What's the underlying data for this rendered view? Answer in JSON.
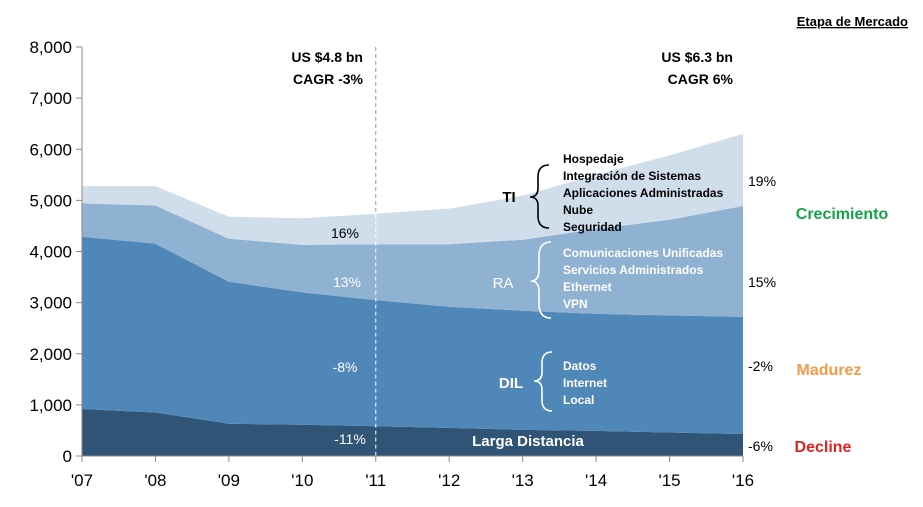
{
  "chart_data": {
    "type": "area",
    "stacked": true,
    "title": "",
    "xlabel": "",
    "ylabel": "",
    "ylim": [
      0,
      8000
    ],
    "yticks": [
      "0",
      "1,000",
      "2,000",
      "3,000",
      "4,000",
      "5,000",
      "6,000",
      "7,000",
      "8,000"
    ],
    "categories": [
      "'07",
      "'08",
      "'09",
      "'10",
      "'11",
      "'12",
      "'13",
      "'14",
      "'15",
      "'16"
    ],
    "series": [
      {
        "name": "Larga Distancia",
        "color": "#2f5475",
        "values": [
          920,
          850,
          630,
          610,
          580,
          550,
          510,
          490,
          460,
          430
        ]
      },
      {
        "name": "DIL",
        "color": "#4f87b8",
        "values": [
          3370,
          3300,
          2780,
          2590,
          2470,
          2370,
          2330,
          2290,
          2290,
          2290
        ]
      },
      {
        "name": "RA",
        "color": "#8fb1d2",
        "values": [
          650,
          750,
          840,
          930,
          1090,
          1220,
          1390,
          1660,
          1870,
          2170
        ]
      },
      {
        "name": "TI",
        "color": "#d0deec",
        "values": [
          340,
          380,
          430,
          520,
          600,
          700,
          860,
          1060,
          1260,
          1410
        ]
      }
    ],
    "divider_at": "'11",
    "header_left": [
      "US $4.8 bn",
      "CAGR -3%"
    ],
    "header_right": [
      "US $6.3 bn",
      "CAGR 6%"
    ],
    "inner_labels": {
      "ti_hist": "16%",
      "ra_hist": "13%",
      "dil_hist": "-8%",
      "ld_hist": "-11%",
      "ld_name": "Larga Distancia",
      "ti": "TI",
      "ra": "RA",
      "dil": "DIL"
    },
    "growth_right": {
      "ti": "19%",
      "ra": "15%",
      "dil": "-2%",
      "ld": "-6%"
    },
    "ti_items": [
      "Hospedaje",
      "Integración de Sistemas",
      "Aplicaciones Administradas",
      "Nube",
      "Seguridad"
    ],
    "ra_items": [
      "Comunicaciones Unificadas",
      "Servicios Administrados",
      "Ethernet",
      "VPN"
    ],
    "dil_items": [
      "Datos",
      "Internet",
      "Local"
    ],
    "stage_header": "Etapa de Mercado",
    "stages": [
      {
        "label": "Crecimiento",
        "color": "#16a34a"
      },
      {
        "label": "Madurez",
        "color": "#f59a48"
      },
      {
        "label": "Decline",
        "color": "#e32222"
      }
    ]
  }
}
